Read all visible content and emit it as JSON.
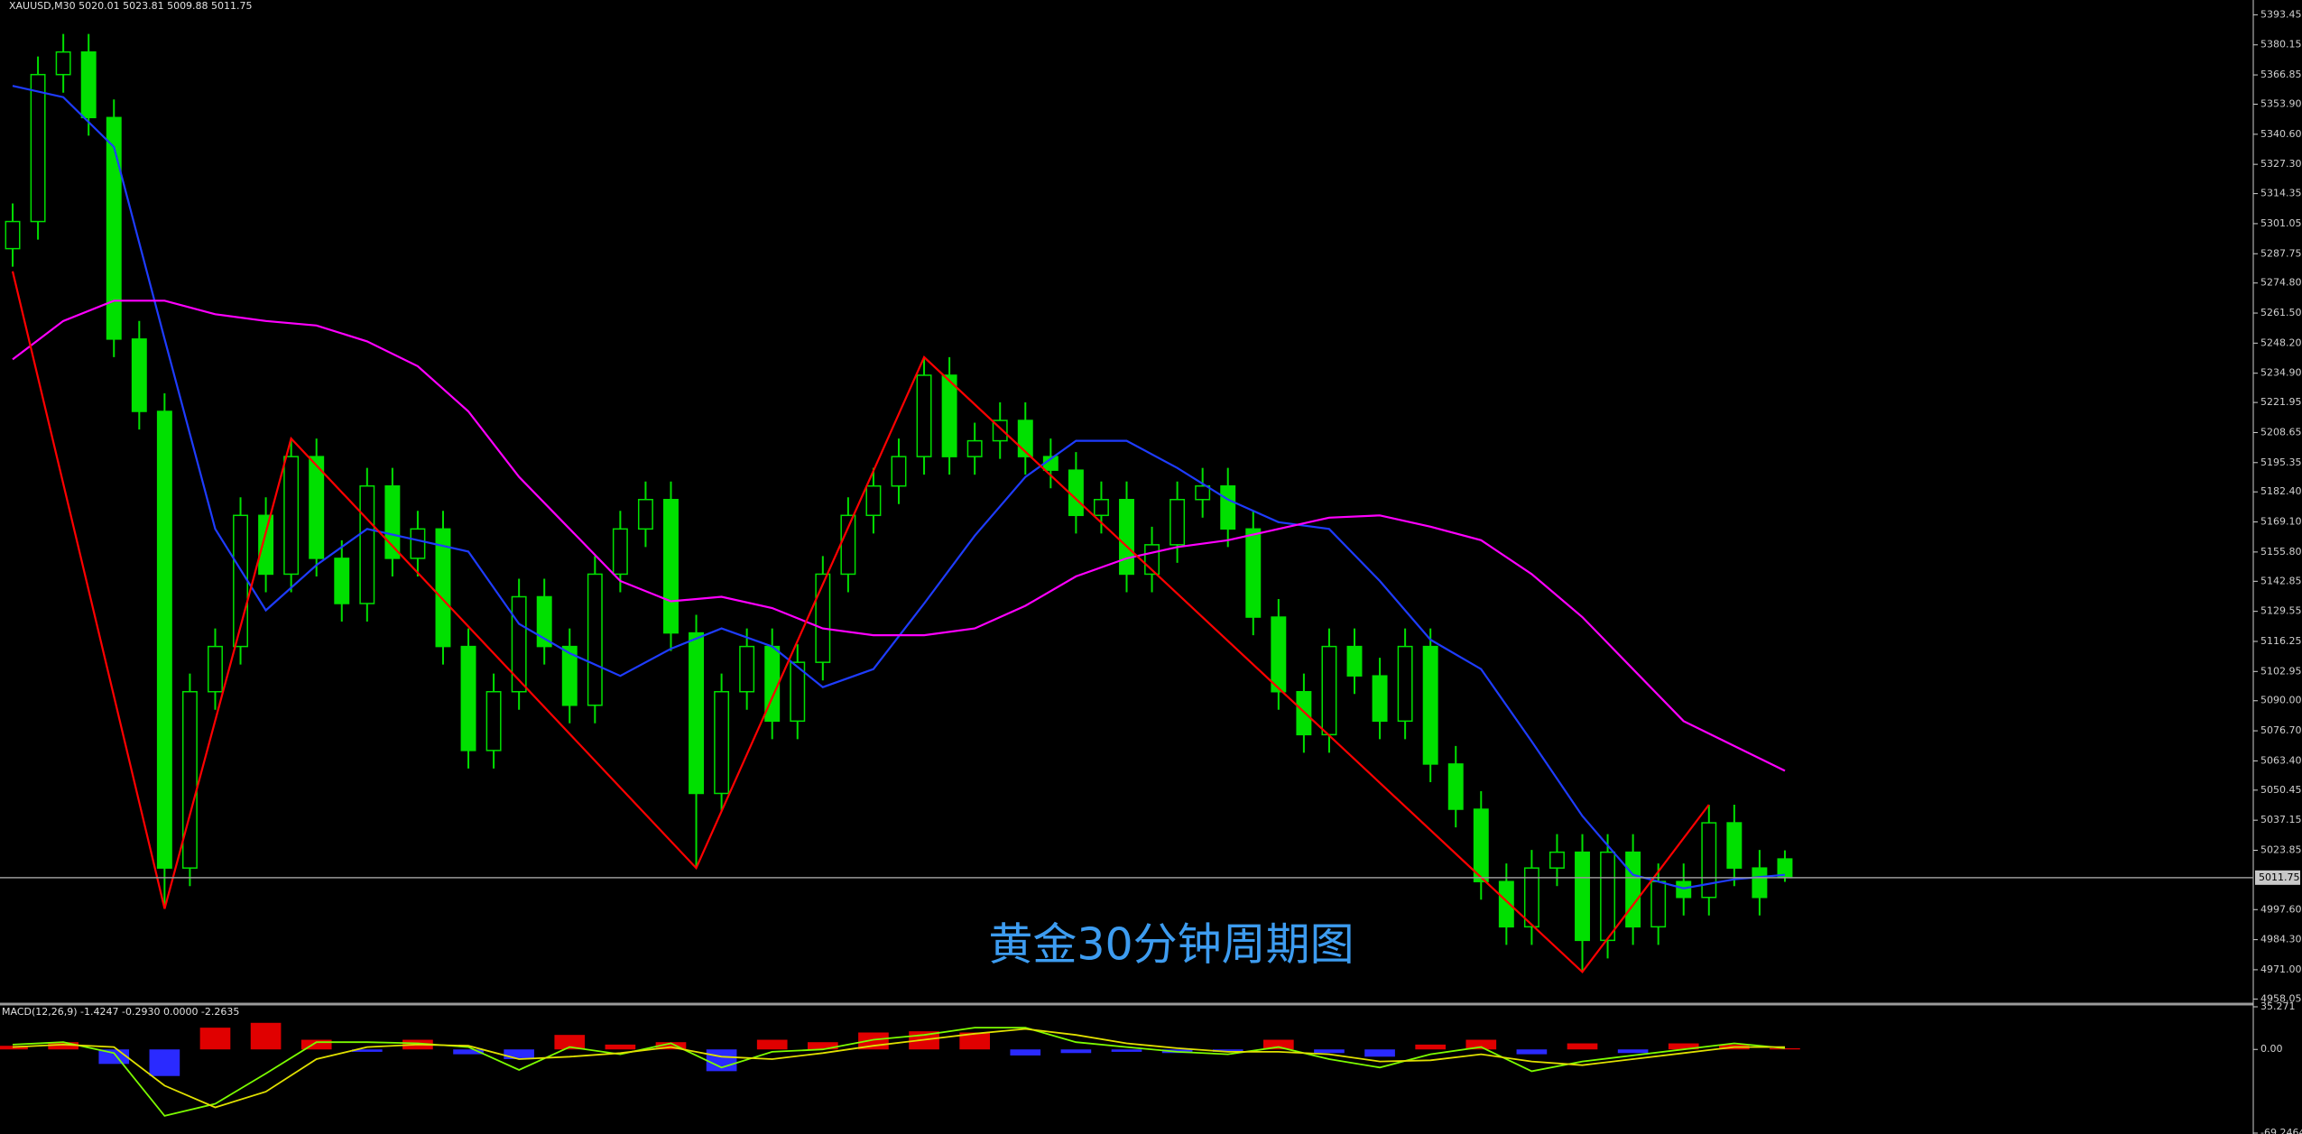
{
  "chart_data": [
    {
      "type": "candlestick",
      "title": "XAUUSD,M30  5020.01 5023.81 5009.88 5011.75",
      "annotation": "黄金30分钟周期图",
      "color": "#00e000",
      "x": [
        0,
        1,
        2,
        3,
        4,
        5,
        6,
        7,
        8,
        9,
        10,
        11,
        12,
        13,
        14,
        15,
        16,
        17,
        18,
        19,
        20,
        21,
        22,
        23,
        24,
        25,
        26,
        27,
        28,
        29,
        30,
        31,
        32,
        33,
        34,
        35,
        36,
        37,
        38,
        39,
        40,
        41,
        42,
        43,
        44,
        45,
        46,
        47,
        48,
        49,
        50,
        51,
        52,
        53,
        54,
        55,
        56,
        57,
        58,
        59,
        60,
        61,
        62,
        63,
        64,
        65,
        66,
        67,
        68,
        69,
        70
      ],
      "open": [
        5290,
        5302,
        5367,
        5377,
        5348,
        5250,
        5218,
        5016,
        5094,
        5114,
        5172,
        5146,
        5198,
        5153,
        5133,
        5185,
        5153,
        5166,
        5114,
        5068,
        5094,
        5136,
        5114,
        5088,
        5146,
        5166,
        5179,
        5120,
        5049,
        5094,
        5114,
        5081,
        5107,
        5146,
        5172,
        5185,
        5198,
        5234,
        5198,
        5205,
        5214,
        5198,
        5192,
        5172,
        5179,
        5146,
        5159,
        5179,
        5185,
        5166,
        5127,
        5094,
        5075,
        5114,
        5101,
        5081,
        5114,
        5062,
        5042,
        5010,
        4990,
        5016,
        5023,
        4984,
        5023,
        4990,
        5010,
        5003,
        5036,
        5016,
        5020.01
      ],
      "high": [
        5310,
        5375,
        5385,
        5385,
        5356,
        5258,
        5226,
        5102,
        5122,
        5180,
        5180,
        5206,
        5206,
        5161,
        5193,
        5193,
        5174,
        5174,
        5122,
        5102,
        5144,
        5144,
        5122,
        5154,
        5174,
        5187,
        5187,
        5128,
        5102,
        5122,
        5122,
        5115,
        5154,
        5180,
        5193,
        5206,
        5242,
        5242,
        5213,
        5222,
        5222,
        5206,
        5200,
        5187,
        5187,
        5167,
        5187,
        5193,
        5193,
        5174,
        5135,
        5102,
        5122,
        5122,
        5109,
        5122,
        5122,
        5070,
        5050,
        5018,
        5024,
        5031,
        5031,
        5031,
        5031,
        5018,
        5018,
        5044,
        5044,
        5024,
        5023.81
      ],
      "low": [
        5282,
        5294,
        5359,
        5340,
        5242,
        5210,
        4998,
        5008,
        5086,
        5106,
        5138,
        5138,
        5145,
        5125,
        5125,
        5145,
        5145,
        5106,
        5060,
        5060,
        5086,
        5106,
        5080,
        5080,
        5138,
        5158,
        5112,
        5016,
        5041,
        5086,
        5073,
        5073,
        5099,
        5138,
        5164,
        5177,
        5190,
        5190,
        5190,
        5197,
        5190,
        5184,
        5164,
        5164,
        5138,
        5138,
        5151,
        5171,
        5158,
        5119,
        5086,
        5067,
        5067,
        5093,
        5073,
        5073,
        5054,
        5034,
        5002,
        4982,
        4982,
        5008,
        4970,
        4976,
        4982,
        4982,
        4995,
        4995,
        5008,
        4995,
        5009.88
      ],
      "close": [
        5302,
        5367,
        5377,
        5348,
        5250,
        5218,
        5016,
        5094,
        5114,
        5172,
        5146,
        5198,
        5153,
        5133,
        5185,
        5153,
        5166,
        5114,
        5068,
        5094,
        5136,
        5114,
        5088,
        5146,
        5166,
        5179,
        5120,
        5049,
        5094,
        5114,
        5081,
        5107,
        5146,
        5172,
        5185,
        5198,
        5234,
        5198,
        5205,
        5214,
        5198,
        5192,
        5172,
        5179,
        5146,
        5159,
        5179,
        5185,
        5166,
        5127,
        5094,
        5075,
        5114,
        5101,
        5081,
        5114,
        5062,
        5042,
        5010,
        4990,
        5016,
        5023,
        4984,
        5023,
        4990,
        5010,
        5003,
        5036,
        5016,
        5003,
        5011.75
      ],
      "overlays": [
        {
          "color": "#1e3cff",
          "x": [
            0,
            2,
            4,
            6,
            8,
            10,
            12,
            14,
            16,
            18,
            20,
            22,
            24,
            26,
            28,
            30,
            32,
            34,
            36,
            38,
            40,
            42,
            44,
            46,
            48,
            50,
            52,
            54,
            56,
            58,
            60,
            62,
            64,
            66,
            68,
            70
          ],
          "values": [
            5362,
            5357,
            5335,
            5250,
            5166,
            5130,
            5150,
            5166,
            5161,
            5156,
            5124,
            5111,
            5101,
            5113,
            5122,
            5114,
            5096,
            5104,
            5133,
            5163,
            5189,
            5205,
            5205,
            5193,
            5179,
            5169,
            5166,
            5143,
            5117,
            5104,
            5072,
            5039,
            5013,
            5007,
            5011,
            5013
          ]
        },
        {
          "color": "#ff00ff",
          "x": [
            0,
            2,
            4,
            6,
            8,
            10,
            12,
            14,
            16,
            18,
            20,
            22,
            24,
            26,
            28,
            30,
            32,
            34,
            36,
            38,
            40,
            42,
            44,
            46,
            48,
            50,
            52,
            54,
            56,
            58,
            60,
            62,
            64,
            66,
            68,
            70
          ],
          "values": [
            5241,
            5258,
            5267,
            5267,
            5261,
            5258,
            5256,
            5249,
            5238,
            5218,
            5189,
            5166,
            5143,
            5134,
            5136,
            5131,
            5122,
            5119,
            5119,
            5122,
            5132,
            5145,
            5153,
            5158,
            5161,
            5166,
            5171,
            5172,
            5167,
            5161,
            5146,
            5127,
            5104,
            5081,
            5070,
            5059
          ]
        },
        {
          "color": "#ff0000",
          "x": [
            0,
            6,
            11,
            27,
            36,
            62,
            67
          ],
          "values": [
            5280,
            4998,
            5206,
            5016,
            5242,
            4970,
            5044
          ]
        }
      ],
      "price_line": 5011.75,
      "xlim": [
        -0.5,
        88.5
      ],
      "ylim": [
        4957,
        5400
      ],
      "yticks": [
        5393.45,
        5380.15,
        5366.85,
        {
          "value": 5353.9,
          "label": "5353.90"
        },
        {
          "value": 5340.6,
          "label": "5340.60"
        },
        {
          "value": 5327.3,
          "label": "5327.30"
        },
        5314.35,
        5301.05,
        5287.75,
        {
          "value": 5274.8,
          "label": "5274.80"
        },
        {
          "value": 5261.5,
          "label": "5261.50"
        },
        {
          "value": 5248.2,
          "label": "5248.20"
        },
        {
          "value": 5234.9,
          "label": "5234.90"
        },
        5221.95,
        5208.65,
        5195.35,
        {
          "value": 5182.4,
          "label": "5182.40"
        },
        {
          "value": 5169.1,
          "label": "5169.10"
        },
        {
          "value": 5155.8,
          "label": "5155.80"
        },
        5142.85,
        5129.55,
        5116.25,
        5102.95,
        {
          "value": 5090,
          "label": "5090.00"
        },
        {
          "value": 5076.7,
          "label": "5076.70"
        },
        {
          "value": 5063.4,
          "label": "5063.40"
        },
        5050.45,
        5037.15,
        5023.85,
        {
          "value": 4997.6,
          "label": "4997.60"
        },
        {
          "value": 4984.3,
          "label": "4984.30"
        },
        {
          "value": 4971,
          "label": "4971.00"
        },
        4958.05
      ]
    },
    {
      "type": "macd",
      "title": "MACD(12,26,9) -1.4247 -0.2930 0.0000 -2.2635",
      "xlim": [
        -0.5,
        88.5
      ],
      "ylim": [
        -69.2464,
        35.271
      ],
      "yticks": [
        35.271,
        {
          "value": 0,
          "label": "0.00"
        },
        -69.2464
      ],
      "x": [
        0,
        2,
        4,
        6,
        8,
        10,
        12,
        14,
        16,
        18,
        20,
        22,
        24,
        26,
        28,
        30,
        32,
        34,
        36,
        38,
        40,
        42,
        44,
        46,
        48,
        50,
        52,
        54,
        56,
        58,
        60,
        62,
        64,
        66,
        68,
        70
      ],
      "series": [
        {
          "type": "bar",
          "up_color": "#e00000",
          "down_color": "#2a2aff",
          "values": [
            3,
            6,
            -12,
            -22,
            18,
            22,
            8,
            -2,
            8,
            -4,
            -8,
            12,
            4,
            6,
            -18,
            8,
            6,
            14,
            15,
            14,
            -5,
            -3,
            -2,
            -3,
            -2,
            8,
            -3,
            -6,
            4,
            8,
            -4,
            5,
            -3,
            5,
            4,
            1
          ]
        },
        {
          "type": "line",
          "color": "#7cfc00",
          "values": [
            4,
            6,
            -3,
            -55,
            -45,
            -20,
            6,
            6,
            5,
            2,
            -17,
            2,
            -4,
            5,
            -15,
            -2,
            0,
            8,
            12,
            18,
            18,
            6,
            2,
            -2,
            -4,
            2,
            -8,
            -15,
            -4,
            2,
            -18,
            -10,
            -5,
            0,
            5,
            1
          ]
        },
        {
          "type": "line",
          "color": "#e0e000",
          "values": [
            2,
            4,
            2,
            -30,
            -48,
            -35,
            -8,
            2,
            4,
            3,
            -8,
            -6,
            -3,
            2,
            -6,
            -8,
            -3,
            3,
            8,
            13,
            17,
            12,
            5,
            1,
            -2,
            -2,
            -4,
            -10,
            -9,
            -4,
            -10,
            -13,
            -8,
            -3,
            2,
            2
          ]
        }
      ]
    }
  ]
}
